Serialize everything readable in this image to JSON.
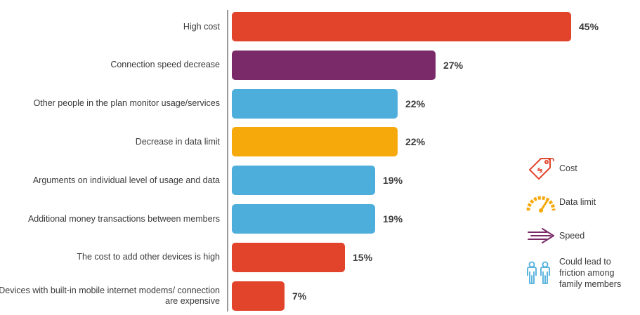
{
  "chart_data": {
    "type": "bar",
    "orientation": "horizontal",
    "title": "",
    "categories": [
      "High cost",
      "Connection speed decrease",
      "Other people in the plan monitor usage/services",
      "Decrease in data limit",
      "Arguments on individual level of usage and data",
      "Additional money transactions between members",
      "The cost to add other devices is high",
      "Devices with built-in mobile internet modems/ connection are expensive"
    ],
    "values": [
      45,
      27,
      22,
      22,
      19,
      19,
      15,
      7
    ],
    "value_labels": [
      "45%",
      "27%",
      "22%",
      "22%",
      "19%",
      "19%",
      "15%",
      "7%"
    ],
    "bar_groups": [
      "cost",
      "speed",
      "friction",
      "data",
      "friction",
      "friction",
      "cost",
      "cost"
    ],
    "xlim": [
      0,
      45
    ],
    "grid": false,
    "legend_position": "right",
    "colors": {
      "cost": "#E2432B",
      "speed": "#7A2A68",
      "data": "#F6A90B",
      "friction": "#4EAEDB",
      "axis": "#9A9A9A",
      "text": "#3A3A3A"
    },
    "legend": [
      {
        "key": "cost",
        "label": "Cost",
        "icon": "price-tag-icon"
      },
      {
        "key": "data",
        "label": "Data limit",
        "icon": "gauge-icon"
      },
      {
        "key": "speed",
        "label": "Speed",
        "icon": "speed-arrow-icon"
      },
      {
        "key": "friction",
        "label": "Could lead to friction among family members",
        "icon": "family-icon"
      }
    ]
  }
}
